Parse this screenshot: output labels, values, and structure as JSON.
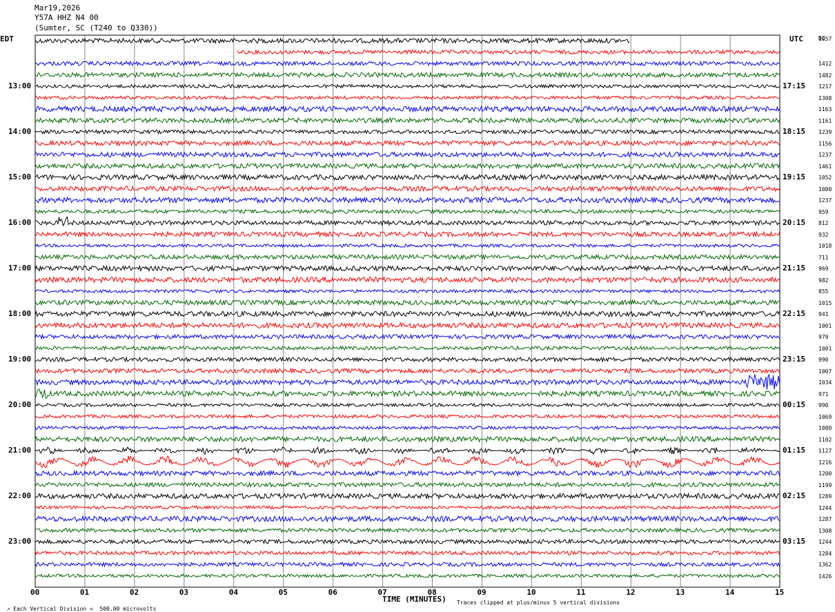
{
  "header": {
    "date": "Mar19,2026",
    "station": "Y57A HHZ N4 00",
    "location": "(Sumter, SC (T240 to Q330))"
  },
  "left_label": "EDT",
  "right_label": "UTC",
  "dc_label": "DC",
  "footer": {
    "left": "Each Vertical Division =  500.00 microvolts",
    "right": "Traces clipped at plus/minus 5 vertical divisions"
  },
  "colors": [
    "#000000",
    "#ff0000",
    "#0000ff",
    "#006600"
  ],
  "chart_data": {
    "type": "line",
    "title": "",
    "xlabel": "TIME (MINUTES)",
    "xlim": [
      0,
      15
    ],
    "x_ticks": [
      "00",
      "01",
      "02",
      "03",
      "04",
      "05",
      "06",
      "07",
      "08",
      "09",
      "10",
      "11",
      "12",
      "13",
      "14",
      "15"
    ],
    "minutes_per_line": 15,
    "time_labels_left": [
      "13:00",
      "14:00",
      "15:00",
      "16:00",
      "17:00",
      "18:00",
      "19:00",
      "20:00",
      "21:00",
      "22:00",
      "23:00"
    ],
    "time_labels_right": [
      "17:15",
      "18:15",
      "19:15",
      "20:15",
      "21:15",
      "22:15",
      "23:15",
      "00:15",
      "01:15",
      "02:15",
      "03:15"
    ],
    "dc_offsets": [
      "1057",
      "",
      "1412",
      "1482",
      "1217",
      "1308",
      "1163",
      "1161",
      "1239",
      "1156",
      "1237",
      "1461",
      "1052",
      "1080",
      "1237",
      "959",
      "812",
      "932",
      "1018",
      "711",
      "969",
      "982",
      "855",
      "1015",
      "941",
      "1001",
      "979",
      "1001",
      "990",
      "1007",
      "1034",
      "971",
      "990",
      "1069",
      "1080",
      "1102",
      "1127",
      "1216",
      "1200",
      "1199",
      "1289",
      "1244",
      "1287",
      "1308",
      "1244",
      "1284",
      "1362",
      "1426"
    ],
    "trace_count": 48,
    "clip_divisions": 5,
    "vertical_division_microvolts": 500.0
  }
}
